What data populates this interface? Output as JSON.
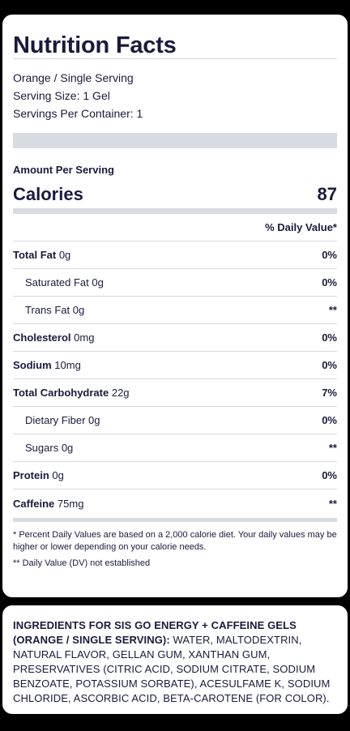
{
  "facts": {
    "title": "Nutrition Facts",
    "serving_lines": [
      "Orange / Single Serving",
      "Serving Size: 1 Gel",
      "Servings Per Container: 1"
    ],
    "amount_per_serving": "Amount Per Serving",
    "calories_label": "Calories",
    "calories_value": "87",
    "daily_value_header": "% Daily Value*",
    "rows": [
      {
        "name": "Total Fat",
        "amount": "0g",
        "dv": "0%",
        "bold": true
      },
      {
        "name": "Saturated Fat",
        "amount": "0g",
        "dv": "0%",
        "bold": false
      },
      {
        "name": "Trans Fat",
        "amount": "0g",
        "dv": "**",
        "bold": false
      },
      {
        "name": "Cholesterol",
        "amount": "0mg",
        "dv": "0%",
        "bold": true
      },
      {
        "name": "Sodium",
        "amount": "10mg",
        "dv": "0%",
        "bold": true
      },
      {
        "name": "Total Carbohydrate",
        "amount": "22g",
        "dv": "7%",
        "bold": true
      },
      {
        "name": "Dietary Fiber",
        "amount": "0g",
        "dv": "0%",
        "bold": false
      },
      {
        "name": "Sugars",
        "amount": "0g",
        "dv": "**",
        "bold": false
      },
      {
        "name": "Protein",
        "amount": "0g",
        "dv": "0%",
        "bold": true
      },
      {
        "name": "Caffeine",
        "amount": "75mg",
        "dv": "**",
        "bold": true
      }
    ],
    "footnote_1": "* Percent Daily Values are based on a 2,000 calorie diet. Your daily values may be higher or lower depending on your calorie needs.",
    "footnote_2": "** Daily Value (DV) not established"
  },
  "ingredients": {
    "heading": "INGREDIENTS FOR SIS GO ENERGY + CAFFEINE GELS (ORANGE / SINGLE SERVING):",
    "text": " WATER, MALTODEXTRIN, NATURAL FLAVOR, GELLAN GUM, XANTHAN GUM, PRESERVATIVES (CITRIC ACID, SODIUM CITRATE, SODIUM BENZOATE, POTASSIUM SORBATE), ACESULFAME K, SODIUM CHLORIDE, ASCORBIC ACID, BETA-CAROTENE (FOR COLOR)."
  },
  "colors": {
    "text": "#1a1a3e",
    "bar": "#d9dbe2",
    "background": "#000000",
    "card": "#ffffff"
  }
}
